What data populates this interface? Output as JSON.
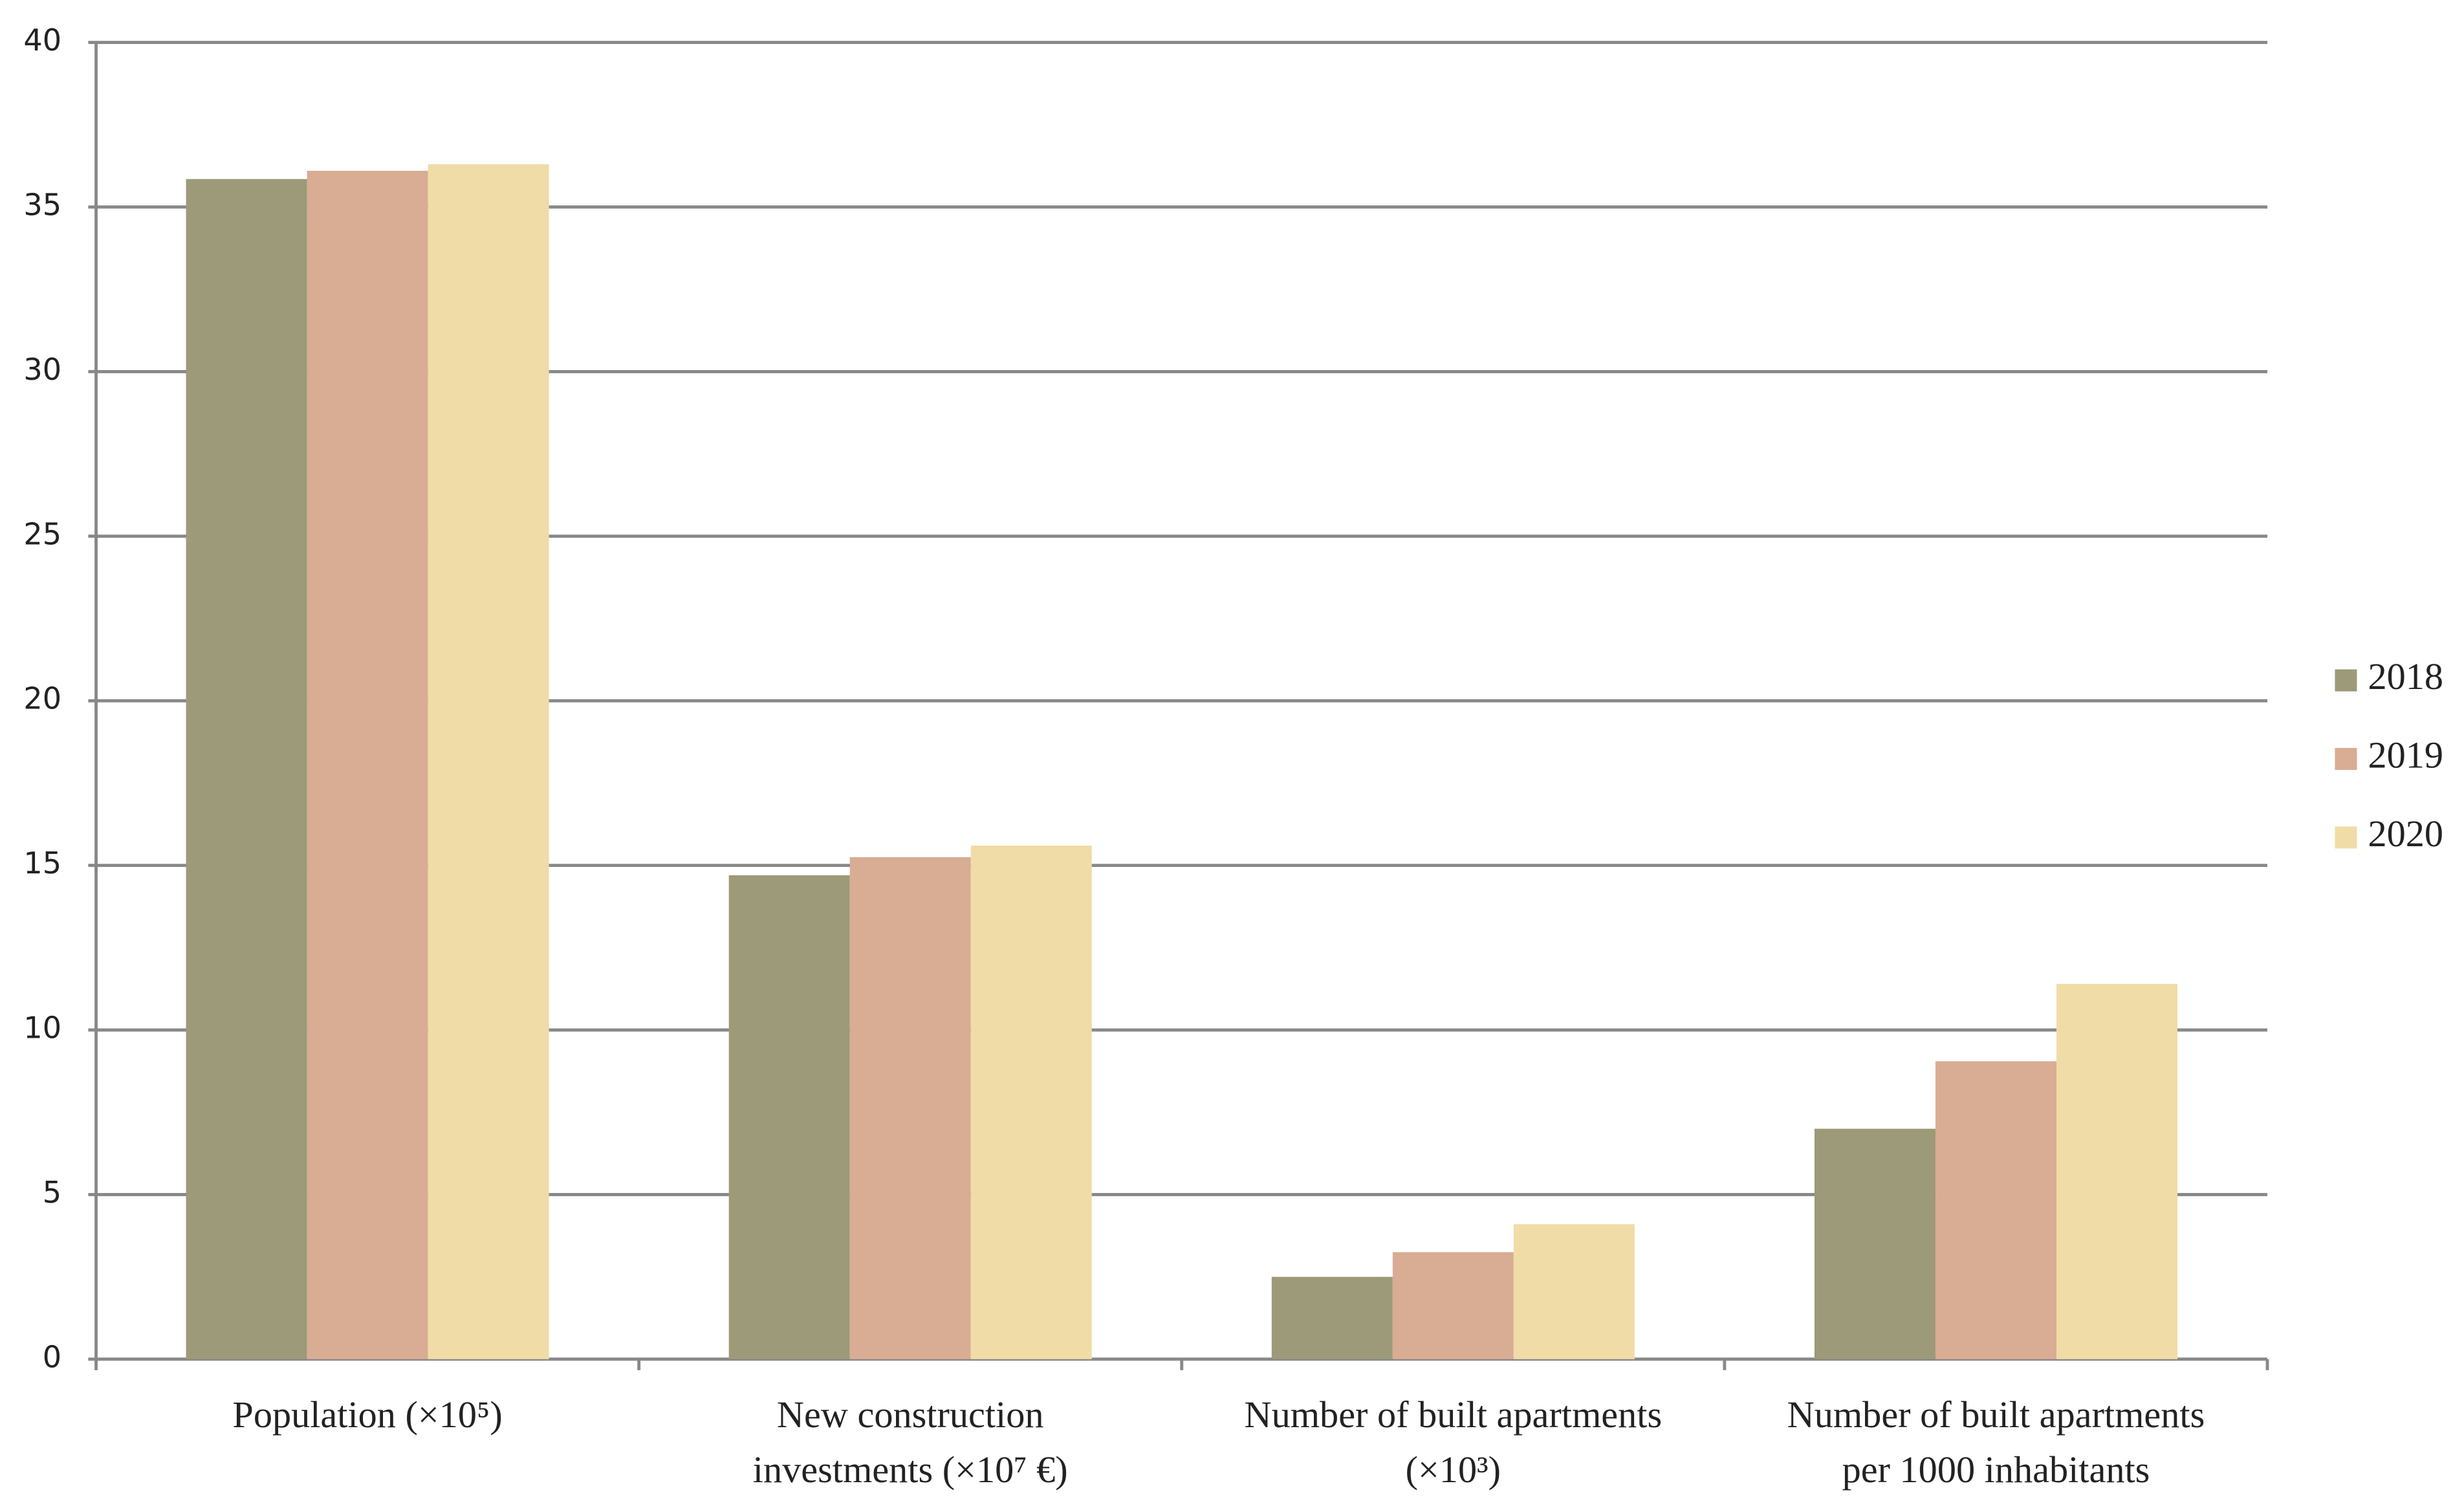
{
  "chart_data": {
    "type": "bar",
    "categories": [
      "Population (×10⁵)",
      "New construction\ninvestments (×10⁷ €)",
      "Number of built apartments\n(×10³)",
      "Number of built apartments\nper 1000 inhabitants"
    ],
    "series": [
      {
        "name": "2018",
        "color": "#9c9a78",
        "values": [
          35.85,
          14.7,
          2.5,
          7.0
        ]
      },
      {
        "name": "2019",
        "color": "#d9ac94",
        "values": [
          36.1,
          15.25,
          3.25,
          9.05
        ]
      },
      {
        "name": "2020",
        "color": "#f0dca6",
        "values": [
          36.3,
          15.6,
          4.1,
          11.4
        ]
      }
    ],
    "ylim": [
      0,
      40
    ],
    "yticks": [
      0,
      5,
      10,
      15,
      20,
      25,
      30,
      35,
      40
    ],
    "grid": true,
    "legend": "right"
  }
}
